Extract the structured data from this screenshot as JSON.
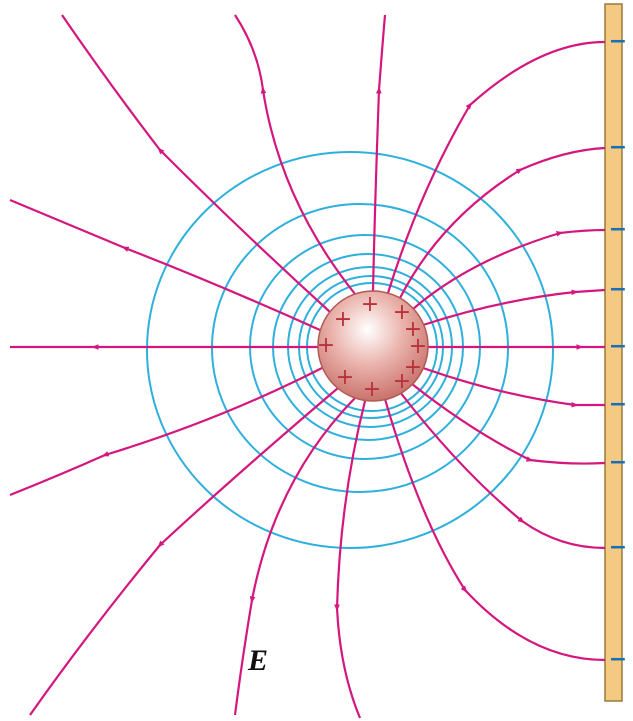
{
  "label": "E",
  "positive_sign": "+",
  "negative_sign": "−"
}
